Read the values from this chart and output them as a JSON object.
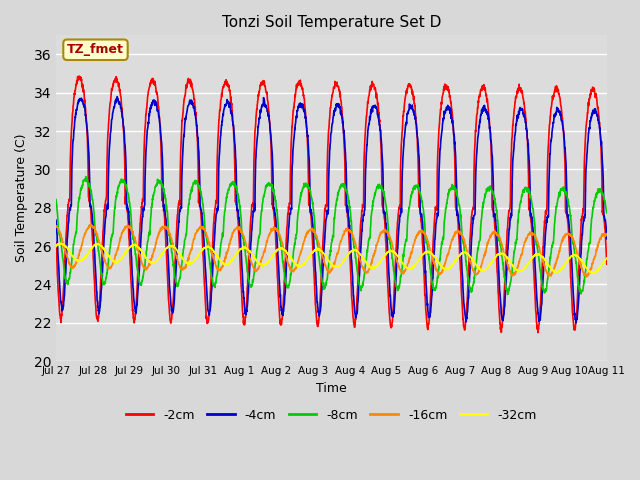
{
  "title": "Tonzi Soil Temperature Set D",
  "xlabel": "Time",
  "ylabel": "Soil Temperature (C)",
  "ylim": [
    20,
    37
  ],
  "yticks": [
    20,
    22,
    24,
    26,
    28,
    30,
    32,
    34,
    36
  ],
  "annotation": "TZ_fmet",
  "bg_color": "#dcdcdc",
  "fig_bg_color": "#d8d8d8",
  "colors": {
    "-2cm": "#ff0000",
    "-4cm": "#0000cc",
    "-8cm": "#00cc00",
    "-16cm": "#ff8800",
    "-32cm": "#ffff00"
  },
  "linewidth": 1.2,
  "x_tick_labels": [
    "Jul 27",
    "Jul 28",
    "Jul 29",
    "Jul 30",
    "Jul 31",
    "Aug 1",
    "Aug 2",
    "Aug 3",
    "Aug 4",
    "Aug 5",
    "Aug 6",
    "Aug 7",
    "Aug 8",
    "Aug 9",
    "Aug 10",
    "Aug 11"
  ],
  "n_days": 16,
  "pts_per_day": 144
}
